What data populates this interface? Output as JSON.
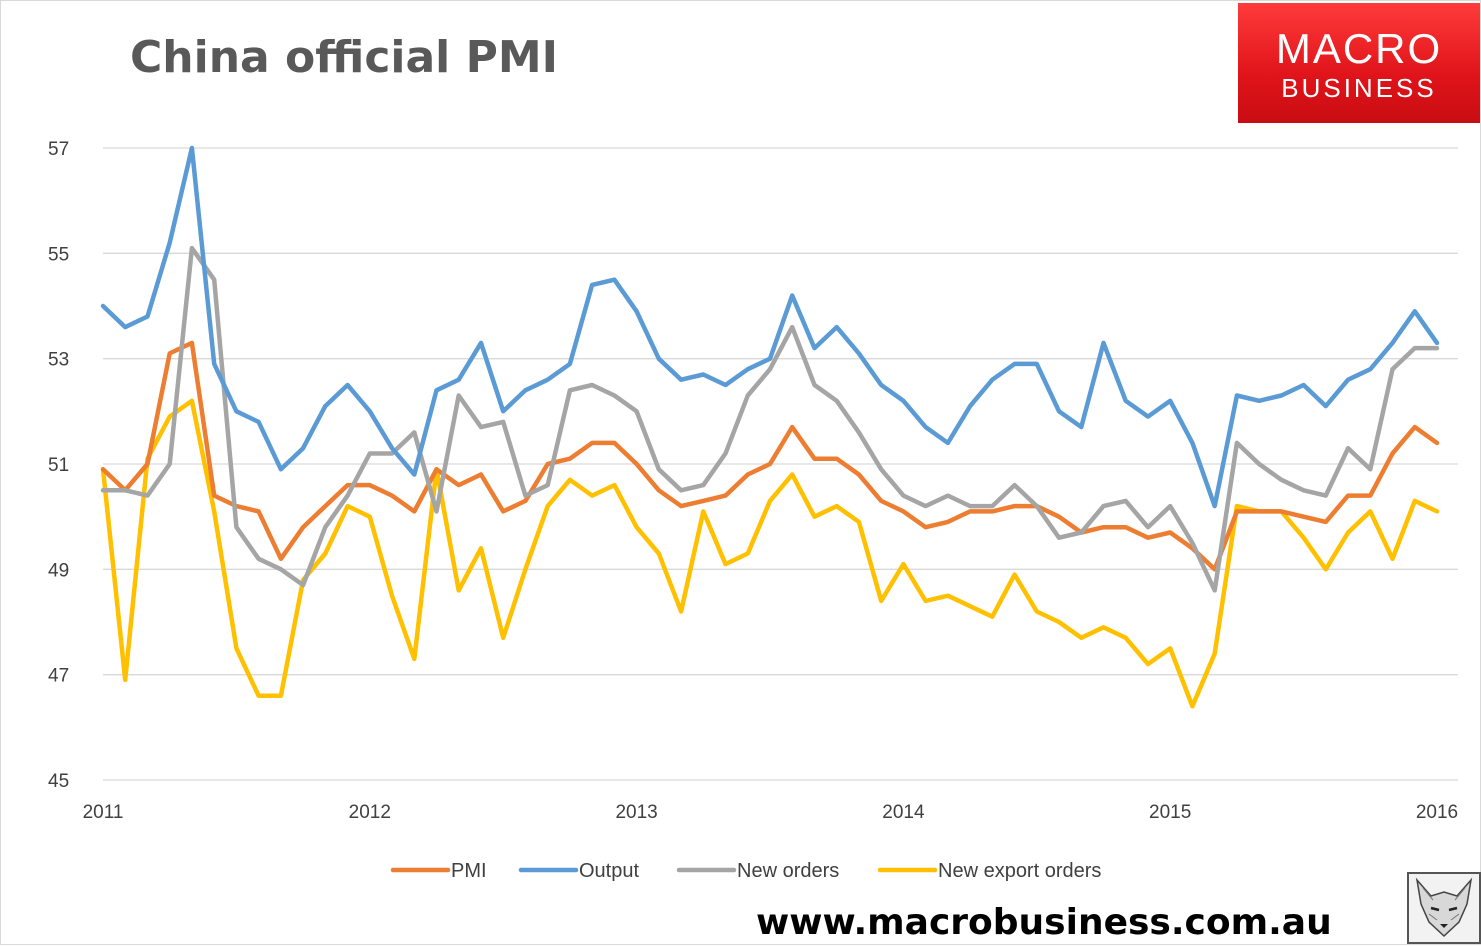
{
  "title": "China official PMI",
  "logo": {
    "line1": "MACRO",
    "line2": "BUSINESS"
  },
  "url": "www.macrobusiness.com.au",
  "chart_data": {
    "type": "line",
    "xlim": [
      2011,
      2016
    ],
    "ylim": [
      45,
      57
    ],
    "x_ticks": [
      "2011",
      "2012",
      "2013",
      "2014",
      "2015",
      "2016"
    ],
    "y_ticks": [
      45,
      47,
      49,
      51,
      53,
      55,
      57
    ],
    "grid": true,
    "legend_position": "bottom",
    "x_start": "2011-01",
    "x_step_months": 1,
    "series": [
      {
        "name": "PMI",
        "color": "#ed7d31",
        "values": [
          50.9,
          50.5,
          51.0,
          53.1,
          53.3,
          50.4,
          50.2,
          50.1,
          49.2,
          49.8,
          50.2,
          50.6,
          50.6,
          50.4,
          50.1,
          50.9,
          50.6,
          50.8,
          50.1,
          50.3,
          51.0,
          51.1,
          51.4,
          51.4,
          51.0,
          50.5,
          50.2,
          50.3,
          50.4,
          50.8,
          51.0,
          51.7,
          51.1,
          51.1,
          50.8,
          50.3,
          50.1,
          49.8,
          49.9,
          50.1,
          50.1,
          50.2,
          50.2,
          50.0,
          49.7,
          49.8,
          49.8,
          49.6,
          49.7,
          49.4,
          49.0,
          50.1,
          50.1,
          50.1,
          50.0,
          49.9,
          50.4,
          50.4,
          51.2,
          51.7,
          51.4
        ]
      },
      {
        "name": "Output",
        "color": "#5b9bd5",
        "values": [
          54.0,
          53.6,
          53.8,
          55.2,
          57.0,
          52.9,
          52.0,
          51.8,
          50.9,
          51.3,
          52.1,
          52.5,
          52.0,
          51.3,
          50.8,
          52.4,
          52.6,
          53.3,
          52.0,
          52.4,
          52.6,
          52.9,
          54.4,
          54.5,
          53.9,
          53.0,
          52.6,
          52.7,
          52.5,
          52.8,
          53.0,
          54.2,
          53.2,
          53.6,
          53.1,
          52.5,
          52.2,
          51.7,
          51.4,
          52.1,
          52.6,
          52.9,
          52.9,
          52.0,
          51.7,
          53.3,
          52.2,
          51.9,
          52.2,
          51.4,
          50.2,
          52.3,
          52.2,
          52.3,
          52.5,
          52.1,
          52.6,
          52.8,
          53.3,
          53.9,
          53.3
        ]
      },
      {
        "name": "New orders",
        "color": "#a5a5a5",
        "values": [
          50.5,
          50.5,
          50.4,
          51.0,
          55.1,
          54.5,
          49.8,
          49.2,
          49.0,
          48.7,
          49.8,
          50.4,
          51.2,
          51.2,
          51.6,
          50.1,
          52.3,
          51.7,
          51.8,
          50.4,
          50.6,
          52.4,
          52.5,
          52.3,
          52.0,
          50.9,
          50.5,
          50.6,
          51.2,
          52.3,
          52.8,
          53.6,
          52.5,
          52.2,
          51.6,
          50.9,
          50.4,
          50.2,
          50.4,
          50.2,
          50.2,
          50.6,
          50.2,
          49.6,
          49.7,
          50.2,
          50.3,
          49.8,
          50.2,
          49.5,
          48.6,
          51.4,
          51.0,
          50.7,
          50.5,
          50.4,
          51.3,
          50.9,
          52.8,
          53.2,
          53.2
        ]
      },
      {
        "name": "New export orders",
        "color": "#ffc000",
        "values": [
          50.9,
          46.9,
          51.1,
          51.9,
          52.2,
          50.1,
          47.5,
          46.6,
          46.6,
          48.8,
          49.3,
          50.2,
          50.0,
          48.5,
          47.3,
          50.9,
          48.6,
          49.4,
          47.7,
          49.0,
          50.2,
          50.7,
          50.4,
          50.6,
          49.8,
          49.3,
          48.2,
          50.1,
          49.1,
          49.3,
          50.3,
          50.8,
          50.0,
          50.2,
          49.9,
          48.4,
          49.1,
          48.4,
          48.5,
          48.3,
          48.1,
          48.9,
          48.2,
          48.0,
          47.7,
          47.9,
          47.7,
          47.2,
          47.5,
          46.4,
          47.4,
          50.2,
          50.1,
          50.1,
          49.6,
          49.0,
          49.7,
          50.1,
          49.2,
          50.3,
          50.1
        ]
      }
    ]
  }
}
